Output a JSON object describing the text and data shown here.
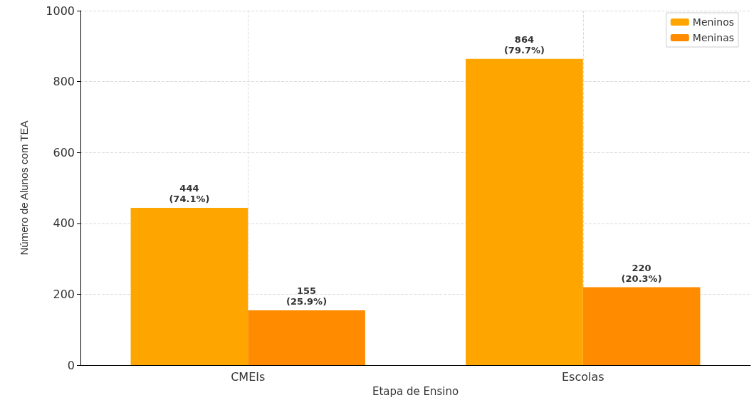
{
  "chart_data": {
    "type": "bar",
    "xlabel": "Etapa de Ensino",
    "ylabel": "Número de Alunos com TEA",
    "categories": [
      "CMEIs",
      "Escolas"
    ],
    "series": [
      {
        "name": "Meninos",
        "color": "#ffa500",
        "values": [
          444,
          864
        ],
        "value_labels": [
          "444\n(74.1%)",
          "864\n(79.7%)"
        ]
      },
      {
        "name": "Meninas",
        "color": "#ff8c00",
        "values": [
          155,
          220
        ],
        "value_labels": [
          "155\n(25.9%)",
          "220\n(20.3%)"
        ]
      }
    ],
    "ylim": [
      0,
      1000
    ],
    "yticks": [
      0,
      200,
      400,
      600,
      800,
      1000
    ],
    "grid": true,
    "legend": "top right"
  }
}
